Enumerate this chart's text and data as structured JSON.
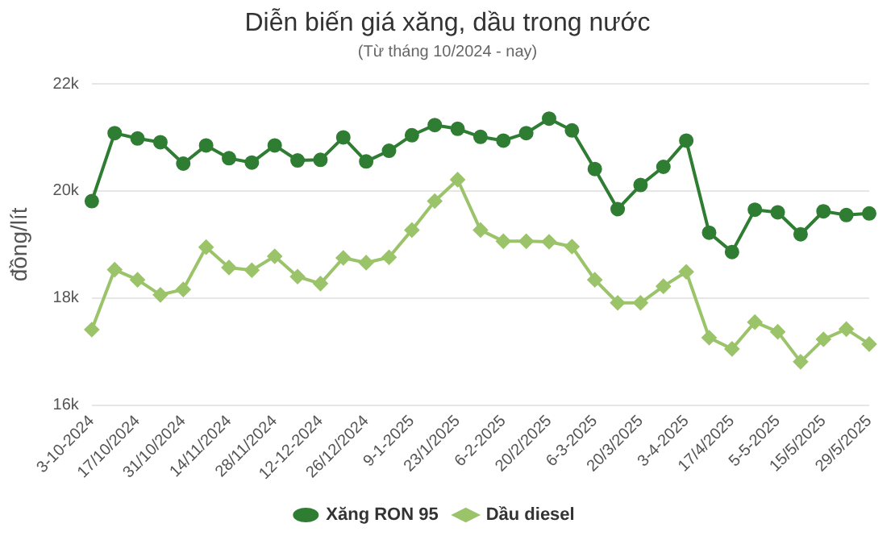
{
  "chart_data": {
    "type": "line",
    "title": "Diễn biến giá xăng, dầu trong nước",
    "subtitle": "(Từ tháng 10/2024 - nay)",
    "ylabel": "đồng/lít",
    "categories": [
      "3-10-2024",
      null,
      "17/10/2024",
      null,
      "31/10/2024",
      null,
      "14/11/2024",
      null,
      "28/11/2024",
      null,
      "12-12-2024",
      null,
      "26/12/2024",
      null,
      "9-1-2025",
      null,
      "23/1/2025",
      null,
      "6-2-2025",
      null,
      "20/2/2025",
      null,
      "6-3-2025",
      null,
      "20/3/2025",
      null,
      "3-4-2025",
      null,
      "17/4/2025",
      null,
      "5-5-2025",
      null,
      "15/5/2025",
      null,
      "29/5/2025"
    ],
    "series": [
      {
        "name": "Xăng RON 95",
        "color": "#2e7d32",
        "marker": "circle",
        "values": [
          19810,
          21080,
          20980,
          20910,
          20510,
          20850,
          20610,
          20530,
          20850,
          20570,
          20580,
          21000,
          20550,
          20750,
          21040,
          21230,
          21160,
          21010,
          20940,
          21080,
          21350,
          21130,
          20410,
          19660,
          20110,
          20450,
          20940,
          19220,
          18860,
          19650,
          19600,
          19190,
          19620,
          19550,
          19580
        ]
      },
      {
        "name": "Dầu diesel",
        "color": "#9bc46a",
        "marker": "diamond",
        "values": [
          17410,
          18530,
          18340,
          18060,
          18160,
          18950,
          18570,
          18520,
          18780,
          18400,
          18270,
          18750,
          18660,
          18760,
          19270,
          19810,
          20210,
          19270,
          19060,
          19060,
          19050,
          18960,
          18340,
          17910,
          17910,
          18220,
          18490,
          17260,
          17050,
          17550,
          17370,
          16810,
          17230,
          17420,
          17140
        ]
      }
    ],
    "ylim": [
      16000,
      22000
    ],
    "yticks": [
      {
        "value": 16000,
        "label": "16k"
      },
      {
        "value": 18000,
        "label": "18k"
      },
      {
        "value": 20000,
        "label": "20k"
      },
      {
        "value": 22000,
        "label": "22k"
      }
    ],
    "grid": "y",
    "legend": "bottom",
    "line_style": "solid"
  }
}
